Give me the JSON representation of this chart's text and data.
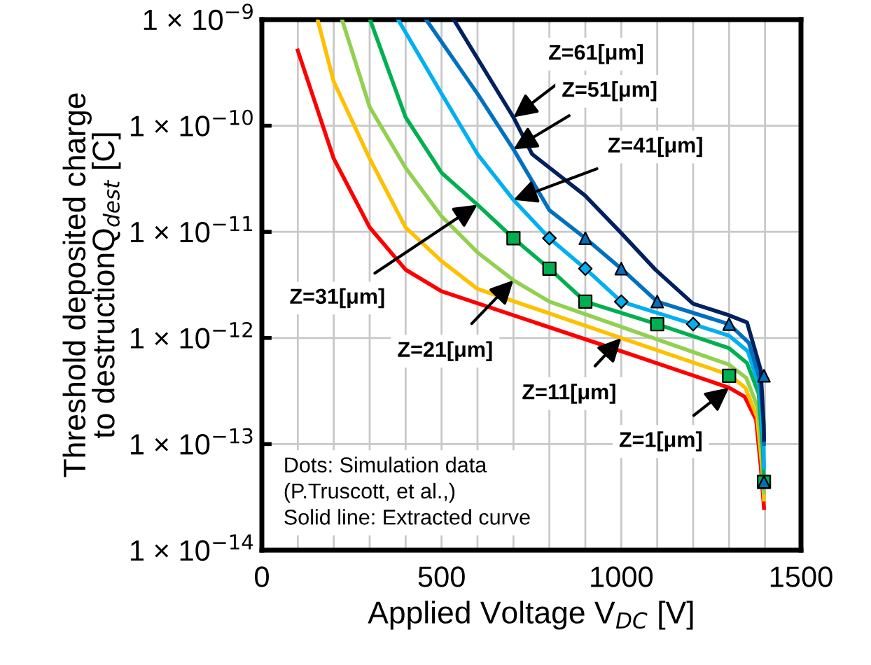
{
  "chart_data": {
    "type": "line",
    "xlabel": "Applied Voltage V$_{DC}$ [V]",
    "ylabel": "Threshold deposited charge\nto destructionQ$_{dest}$ [C]",
    "log": "y",
    "grid": true,
    "xlim": [
      0,
      1500
    ],
    "xticks": [
      0,
      {
        "value": 100,
        "label": null
      },
      {
        "value": 200,
        "label": null
      },
      {
        "value": 300,
        "label": null
      },
      {
        "value": 400,
        "label": null
      },
      500,
      {
        "value": 600,
        "label": null
      },
      {
        "value": 700,
        "label": null
      },
      {
        "value": 800,
        "label": null
      },
      {
        "value": 900,
        "label": null
      },
      1000,
      {
        "value": 1100,
        "label": null
      },
      {
        "value": 1200,
        "label": null
      },
      {
        "value": 1300,
        "label": null
      },
      {
        "value": 1400,
        "label": null
      },
      1500
    ],
    "ylim": [
      1e-14,
      1e-09
    ],
    "yticks": [
      {
        "value": 1e-14,
        "label": "1 × 10$^{−14}$"
      },
      {
        "value": 1e-13,
        "label": "1 × 10$^{−13}$"
      },
      {
        "value": 1e-12,
        "label": "1 × 10$^{−12}$"
      },
      {
        "value": 1e-11,
        "label": "1 × 10$^{−11}$"
      },
      {
        "value": 1e-10,
        "label": "1 × 10$^{−10}$"
      },
      {
        "value": 1e-09,
        "label": "1 × 10$^{−9}$"
      }
    ],
    "series": [
      {
        "color": "#ff0000",
        "x": [
          100,
          200,
          300,
          400,
          500,
          1000,
          1300,
          1343,
          1375,
          1388,
          1397
        ],
        "values": [
          5.1e-10,
          4.9e-11,
          1.1e-11,
          4.4e-12,
          2.75e-12,
          7.5e-13,
          3.4e-13,
          2.8e-13,
          1.7e-13,
          6.2e-14,
          2.5e-14
        ]
      },
      {
        "color": "#ffc000",
        "x": [
          155,
          200,
          300,
          400,
          500,
          600,
          1000,
          1300,
          1345,
          1378,
          1392,
          1397
        ],
        "values": [
          1e-09,
          2.6e-10,
          4.9e-11,
          1.1e-11,
          5.3e-12,
          2.9e-12,
          1e-12,
          4.5e-13,
          3.4e-13,
          1.8e-13,
          6e-14,
          3e-14
        ]
      },
      {
        "color": "#92d050",
        "x": [
          223,
          300,
          400,
          500,
          600,
          700,
          800,
          1300,
          1348,
          1380,
          1393,
          1397
        ],
        "values": [
          1e-09,
          1.5e-10,
          4e-11,
          1.4e-11,
          6.4e-12,
          3.5e-12,
          2.2e-12,
          5.6e-13,
          4.2e-13,
          2.2e-13,
          7e-14,
          3.5e-14
        ]
      },
      {
        "color": "#00b050",
        "x": [
          301,
          400,
          500,
          600,
          700,
          800,
          900,
          1100,
          1300,
          1350,
          1382,
          1394,
          1397
        ],
        "values": [
          1e-09,
          1.2e-10,
          3.6e-11,
          1.8e-11,
          8.7e-12,
          4.5e-12,
          2.2e-12,
          1.35e-12,
          8e-13,
          5.8e-13,
          3e-13,
          9e-14,
          4.4e-14
        ]
      },
      {
        "color": "#00b0f0",
        "x": [
          379,
          500,
          600,
          700,
          800,
          900,
          1000,
          1200,
          1300,
          1352,
          1384,
          1395,
          1397
        ],
        "values": [
          1e-09,
          2e-10,
          5.4e-11,
          2e-11,
          8.7e-12,
          4.5e-12,
          2.2e-12,
          1.35e-12,
          1.05e-12,
          7.5e-13,
          3.5e-13,
          1.1e-13,
          6e-14
        ]
      },
      {
        "color": "#0070c0",
        "x": [
          457,
          600,
          700,
          800,
          900,
          1000,
          1100,
          1300,
          1355,
          1386,
          1396,
          1397
        ],
        "values": [
          1e-09,
          2e-10,
          6e-11,
          1.6e-11,
          8.7e-12,
          4.5e-12,
          2.2e-12,
          1.35e-12,
          9e-13,
          4e-13,
          1.5e-13,
          1e-13
        ]
      },
      {
        "color": "#002060",
        "x": [
          534,
          700,
          752,
          899,
          999,
          1095,
          1200,
          1297,
          1350,
          1388,
          1396,
          1397
        ],
        "values": [
          1e-09,
          1.2e-10,
          5.4e-11,
          2.2e-11,
          9.8e-12,
          4.4e-12,
          2.1e-12,
          1.65e-12,
          1.4e-12,
          5e-13,
          1.6e-13,
          1.1e-13
        ]
      },
      {
        "type": "scatter",
        "marker": "square",
        "color": "#00b050",
        "x": [
          700,
          800,
          900,
          1100,
          1300,
          1397
        ],
        "values": [
          8.7e-12,
          4.5e-12,
          2.2e-12,
          1.35e-12,
          4.4e-13,
          4.4e-14
        ]
      },
      {
        "type": "scatter",
        "marker": "diamond",
        "color": "#00b0f0",
        "x": [
          800,
          900,
          1000,
          1200
        ],
        "values": [
          8.7e-12,
          4.5e-12,
          2.2e-12,
          1.35e-12
        ]
      },
      {
        "type": "scatter",
        "marker": "triangle",
        "color": "#0070c0",
        "x": [
          900,
          1000,
          1100,
          1300,
          1397,
          1397
        ],
        "values": [
          8.7e-12,
          4.5e-12,
          2.2e-12,
          1.35e-12,
          4.4e-13,
          4.4e-14
        ]
      }
    ],
    "annotations": [
      {
        "text": "Z=61[μm]",
        "x": 700,
        "y": 1.2e-10
      },
      {
        "text": "Z=51[μm]",
        "x": 700,
        "y": 6e-11
      },
      {
        "text": "Z=41[μm]",
        "x": 700,
        "y": 2e-11
      },
      {
        "text": "Z=31[μm]",
        "x": 600,
        "y": 1.8e-11
      },
      {
        "text": "Z=21[μm]",
        "x": 700,
        "y": 3.5e-12
      },
      {
        "text": "Z=11[μm]",
        "x": 1000,
        "y": 1e-12
      },
      {
        "text": "Z=1[μm]",
        "x": 1300,
        "y": 3.4e-13
      },
      "Dots: Simulation data\n(P.Truscott, et al.,)\nSolid line: Extracted curve"
    ]
  }
}
